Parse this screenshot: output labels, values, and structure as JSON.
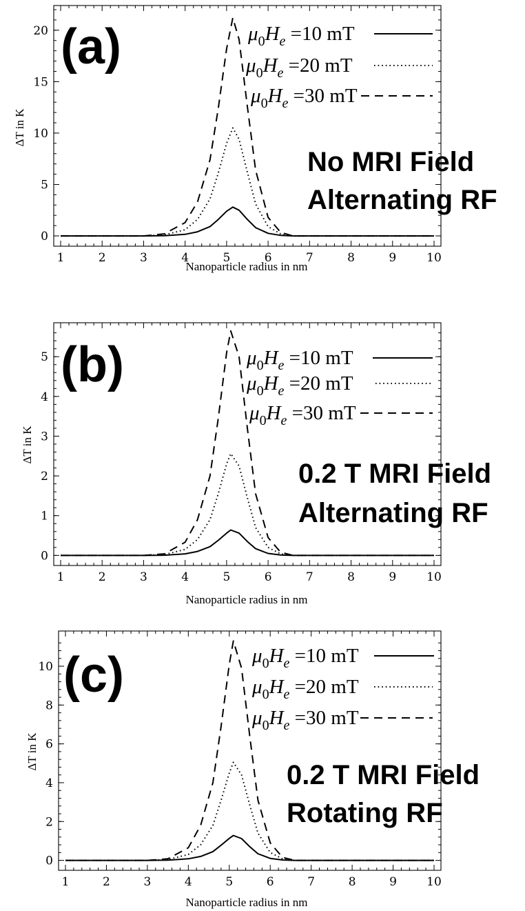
{
  "chart_data": [
    {
      "type": "line",
      "panel_label": "(a)",
      "annotation": [
        "No MRI Field",
        "Alternating RF"
      ],
      "xlabel": "Nanoparticle radius in nm",
      "ylabel": "ΔT in K",
      "xlim": [
        1,
        10
      ],
      "ylim": [
        -0.6,
        22.0
      ],
      "xticks": [
        1,
        2,
        3,
        4,
        5,
        6,
        7,
        8,
        9,
        10
      ],
      "yticks": [
        0,
        5,
        10,
        15,
        20
      ],
      "legend_position": "top-right",
      "grid": false,
      "series": [
        {
          "name": "μ0He = 10 mT",
          "style": "solid",
          "values": [
            [
              1,
              0
            ],
            [
              3,
              0
            ],
            [
              3.5,
              0.02
            ],
            [
              4,
              0.15
            ],
            [
              4.3,
              0.4
            ],
            [
              4.6,
              0.9
            ],
            [
              4.8,
              1.6
            ],
            [
              5.0,
              2.4
            ],
            [
              5.15,
              2.8
            ],
            [
              5.3,
              2.5
            ],
            [
              5.5,
              1.6
            ],
            [
              5.7,
              0.8
            ],
            [
              6.0,
              0.25
            ],
            [
              6.3,
              0.05
            ],
            [
              6.6,
              0
            ],
            [
              10,
              0
            ]
          ]
        },
        {
          "name": "μ0He = 20 mT",
          "style": "dotted",
          "values": [
            [
              1,
              0
            ],
            [
              3,
              0
            ],
            [
              3.5,
              0.1
            ],
            [
              4,
              0.6
            ],
            [
              4.3,
              1.6
            ],
            [
              4.6,
              3.6
            ],
            [
              4.8,
              6.1
            ],
            [
              5.0,
              9.0
            ],
            [
              5.15,
              10.5
            ],
            [
              5.3,
              9.4
            ],
            [
              5.5,
              6.2
            ],
            [
              5.7,
              3.1
            ],
            [
              6.0,
              0.9
            ],
            [
              6.3,
              0.2
            ],
            [
              6.6,
              0
            ],
            [
              10,
              0
            ]
          ]
        },
        {
          "name": "μ0He = 30 mT",
          "style": "dashed",
          "values": [
            [
              1,
              0
            ],
            [
              3,
              0
            ],
            [
              3.5,
              0.2
            ],
            [
              4,
              1.3
            ],
            [
              4.3,
              3.3
            ],
            [
              4.6,
              7.4
            ],
            [
              4.8,
              12.4
            ],
            [
              5.0,
              18.2
            ],
            [
              5.15,
              21.2
            ],
            [
              5.3,
              19.1
            ],
            [
              5.5,
              12.6
            ],
            [
              5.7,
              6.4
            ],
            [
              6.0,
              1.8
            ],
            [
              6.3,
              0.35
            ],
            [
              6.6,
              0
            ],
            [
              10,
              0
            ]
          ]
        }
      ]
    },
    {
      "type": "line",
      "panel_label": "(b)",
      "annotation": [
        "0.2 T MRI Field",
        "Alternating RF"
      ],
      "xlabel": "Nanoparticle radius in nm",
      "ylabel": "ΔT in K",
      "xlim": [
        1,
        10
      ],
      "ylim": [
        -0.15,
        5.75
      ],
      "xticks": [
        1,
        2,
        3,
        4,
        5,
        6,
        7,
        8,
        9,
        10
      ],
      "yticks": [
        0,
        1,
        2,
        3,
        4,
        5
      ],
      "legend_position": "top-right",
      "grid": false,
      "series": [
        {
          "name": "μ0He = 10 mT",
          "style": "solid",
          "values": [
            [
              1,
              0
            ],
            [
              3,
              0
            ],
            [
              3.5,
              0.005
            ],
            [
              4,
              0.04
            ],
            [
              4.3,
              0.1
            ],
            [
              4.6,
              0.22
            ],
            [
              4.8,
              0.38
            ],
            [
              5.0,
              0.56
            ],
            [
              5.1,
              0.64
            ],
            [
              5.3,
              0.56
            ],
            [
              5.5,
              0.35
            ],
            [
              5.7,
              0.17
            ],
            [
              6.0,
              0.05
            ],
            [
              6.3,
              0.01
            ],
            [
              6.6,
              0
            ],
            [
              10,
              0
            ]
          ]
        },
        {
          "name": "μ0He = 20 mT",
          "style": "dotted",
          "values": [
            [
              1,
              0
            ],
            [
              3,
              0
            ],
            [
              3.5,
              0.02
            ],
            [
              4,
              0.15
            ],
            [
              4.3,
              0.4
            ],
            [
              4.6,
              0.9
            ],
            [
              4.8,
              1.55
            ],
            [
              5.0,
              2.3
            ],
            [
              5.1,
              2.56
            ],
            [
              5.3,
              2.25
            ],
            [
              5.5,
              1.45
            ],
            [
              5.7,
              0.7
            ],
            [
              6.0,
              0.2
            ],
            [
              6.3,
              0.04
            ],
            [
              6.6,
              0
            ],
            [
              10,
              0
            ]
          ]
        },
        {
          "name": "μ0He = 30 mT",
          "style": "dashed",
          "values": [
            [
              1,
              0
            ],
            [
              3,
              0
            ],
            [
              3.5,
              0.04
            ],
            [
              4,
              0.33
            ],
            [
              4.3,
              0.9
            ],
            [
              4.6,
              2.0
            ],
            [
              4.8,
              3.45
            ],
            [
              5.0,
              5.1
            ],
            [
              5.1,
              5.65
            ],
            [
              5.3,
              5.0
            ],
            [
              5.5,
              3.2
            ],
            [
              5.7,
              1.55
            ],
            [
              6.0,
              0.45
            ],
            [
              6.3,
              0.08
            ],
            [
              6.6,
              0
            ],
            [
              10,
              0
            ]
          ]
        }
      ]
    },
    {
      "type": "line",
      "panel_label": "(c)",
      "annotation": [
        "0.2 T MRI Field",
        "Rotating RF"
      ],
      "xlabel": "Nanoparticle radius in nm",
      "ylabel": "ΔT in K",
      "xlim": [
        1,
        10
      ],
      "ylim": [
        -0.3,
        11.6
      ],
      "xticks": [
        1,
        2,
        3,
        4,
        5,
        6,
        7,
        8,
        9,
        10
      ],
      "yticks": [
        0,
        2,
        4,
        6,
        8,
        10
      ],
      "legend_position": "top-right",
      "grid": false,
      "series": [
        {
          "name": "μ0He = 10 mT",
          "style": "solid",
          "values": [
            [
              1,
              0
            ],
            [
              3,
              0
            ],
            [
              3.5,
              0.01
            ],
            [
              4,
              0.08
            ],
            [
              4.3,
              0.2
            ],
            [
              4.6,
              0.45
            ],
            [
              4.8,
              0.78
            ],
            [
              5.0,
              1.13
            ],
            [
              5.1,
              1.28
            ],
            [
              5.3,
              1.12
            ],
            [
              5.5,
              0.7
            ],
            [
              5.7,
              0.34
            ],
            [
              6.0,
              0.1
            ],
            [
              6.3,
              0.02
            ],
            [
              6.6,
              0
            ],
            [
              10,
              0
            ]
          ]
        },
        {
          "name": "μ0He = 20 mT",
          "style": "dotted",
          "values": [
            [
              1,
              0
            ],
            [
              3,
              0
            ],
            [
              3.5,
              0.04
            ],
            [
              4,
              0.3
            ],
            [
              4.3,
              0.8
            ],
            [
              4.6,
              1.8
            ],
            [
              4.8,
              3.1
            ],
            [
              5.0,
              4.5
            ],
            [
              5.1,
              5.05
            ],
            [
              5.3,
              4.4
            ],
            [
              5.5,
              2.85
            ],
            [
              5.7,
              1.4
            ],
            [
              6.0,
              0.4
            ],
            [
              6.3,
              0.08
            ],
            [
              6.6,
              0
            ],
            [
              10,
              0
            ]
          ]
        },
        {
          "name": "μ0He = 30 mT",
          "style": "dashed",
          "values": [
            [
              1,
              0
            ],
            [
              3,
              0
            ],
            [
              3.5,
              0.08
            ],
            [
              4,
              0.65
            ],
            [
              4.3,
              1.8
            ],
            [
              4.6,
              4.0
            ],
            [
              4.8,
              6.9
            ],
            [
              5.0,
              10.1
            ],
            [
              5.1,
              11.3
            ],
            [
              5.3,
              9.9
            ],
            [
              5.5,
              6.4
            ],
            [
              5.7,
              3.1
            ],
            [
              6.0,
              0.9
            ],
            [
              6.3,
              0.15
            ],
            [
              6.6,
              0
            ],
            [
              10,
              0
            ]
          ]
        }
      ]
    }
  ]
}
